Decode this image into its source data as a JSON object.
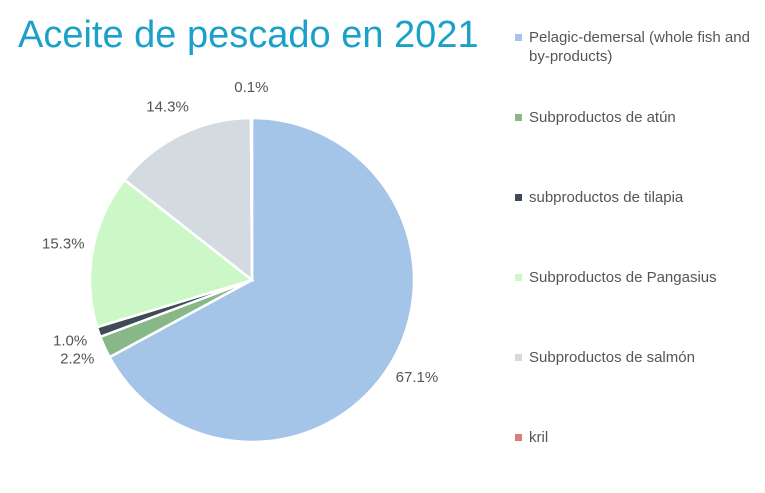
{
  "chart_data": {
    "type": "pie",
    "title": "Aceite de pescado en 2021",
    "categories": [
      "Pelagic-demersal  (whole fish and by-products)",
      "Subproductos de atún",
      "subproductos de tilapia",
      "Subproductos de Pangasius",
      "Subproductos de salmón",
      "kril"
    ],
    "values": [
      67.1,
      2.2,
      1.0,
      15.3,
      14.3,
      0.1
    ],
    "value_labels": [
      "67.1%",
      "2.2%",
      "1.0%",
      "15.3%",
      "14.3%",
      "0.1%"
    ],
    "colors": [
      "#a4c4e8",
      "#88b888",
      "#3f4b57",
      "#ccf7c6",
      "#d3dbe0",
      "#e07b7b"
    ],
    "legend": "right"
  }
}
